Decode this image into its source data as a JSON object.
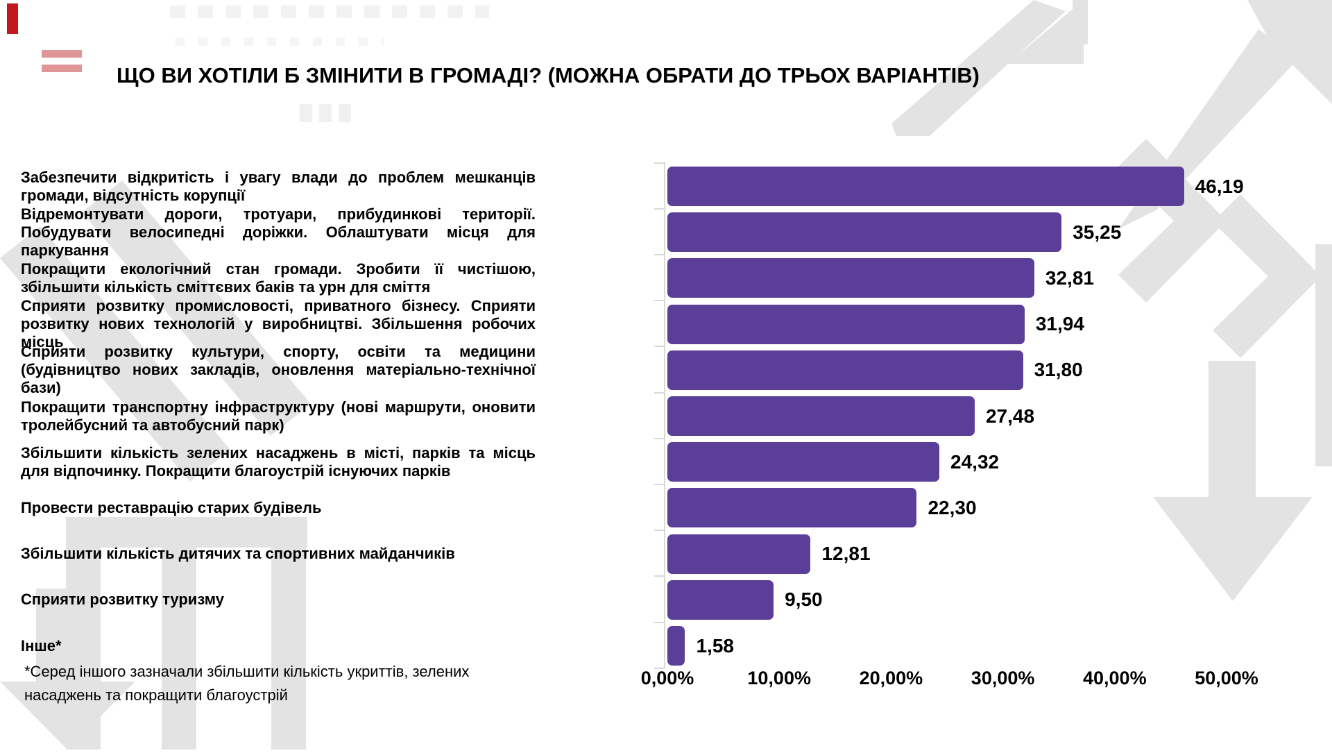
{
  "page": {
    "title": "ЩО ВИ ХОТІЛИ Б ЗМІНИТИ В ГРОМАДІ? (МОЖНА ОБРАТИ ДО ТРЬОХ ВАРІАНТІВ)",
    "footnote": "*Серед іншого  зазначали збільшити кількість укриттів, зелених насаджень та покращити благоустрій"
  },
  "colors": {
    "bar": "#5b3e97",
    "axis": "#d9d9d9",
    "watermark": "#e3e3e3",
    "text": "#000000"
  },
  "chart_data": {
    "type": "bar",
    "orientation": "horizontal",
    "title": "ЩО ВИ ХОТІЛИ Б ЗМІНИТИ В ГРОМАДІ? (МОЖНА ОБРАТИ ДО ТРЬОХ ВАРІАНТІВ)",
    "xlabel": "",
    "ylabel": "",
    "xlim": [
      0,
      50
    ],
    "grid": false,
    "legend": "none",
    "x_tick_labels": [
      "0,00%",
      "10,00%",
      "20,00%",
      "30,00%",
      "40,00%",
      "50,00%"
    ],
    "categories": [
      "Забезпечити відкритість і увагу влади до проблем мешканців громади, відсутність корупції",
      "Відремонтувати дороги, тротуари, прибудинкові території. Побудувати велосипедні доріжки. Облаштувати місця для паркування",
      "Покращити екологічний стан громади. Зробити її чистішою, збільшити кількість сміттєвих баків та урн для сміття",
      "Сприяти розвитку промисловості, приватного бізнесу. Сприяти розвитку нових технологій у виробництві. Збільшення робочих місць",
      "Сприяти розвитку культури, спорту, освіти та медицини (будівництво нових закладів, оновлення матеріально-технічної бази)",
      "Покращити транспортну інфраструктуру (нові маршрути, оновити тролейбусний та автобусний парк)",
      "Збільшити кількість зелених насаджень в місті, парків та місць для відпочинку. Покращити благоустрій існуючих парків",
      "Провести реставрацію старих будівель",
      "Збільшити кількість дитячих та спортивних майданчиків",
      "Сприяти розвитку туризму",
      "Інше*"
    ],
    "values": [
      46.19,
      35.25,
      32.81,
      31.94,
      31.8,
      27.48,
      24.32,
      22.3,
      12.81,
      9.5,
      1.58
    ],
    "value_labels": [
      "46,19",
      "35,25",
      "32,81",
      "31,94",
      "31,80",
      "27,48",
      "24,32",
      "22,30",
      "12,81",
      "9,50",
      "1,58"
    ]
  }
}
